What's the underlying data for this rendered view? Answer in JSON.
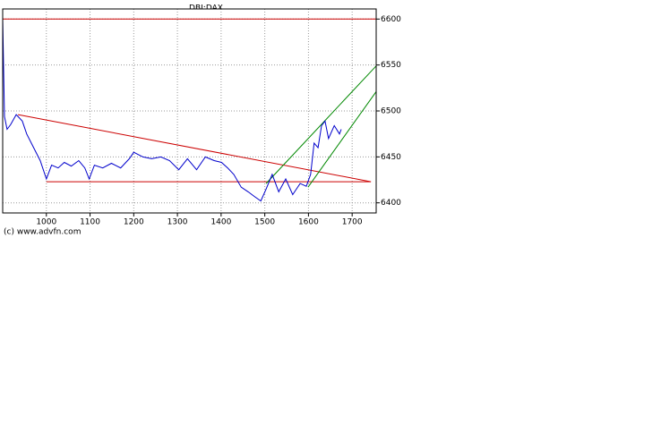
{
  "chart_data": {
    "type": "line",
    "title": "DBI:DAX",
    "credit": "(c) www.advfn.com",
    "xlim": [
      900,
      1755
    ],
    "ylim": [
      6389,
      6611
    ],
    "xticks": [
      1000,
      1100,
      1200,
      1300,
      1400,
      1500,
      1600,
      1700
    ],
    "yticks": [
      6400,
      6450,
      6500,
      6550,
      6600
    ],
    "grid": true,
    "series": [
      {
        "color": "#0000cc",
        "x": [
          900,
          904,
          910,
          918,
          931,
          945,
          955,
          971,
          986,
          1000,
          1012,
          1027,
          1041,
          1057,
          1074,
          1088,
          1098,
          1110,
          1129,
          1149,
          1170,
          1190,
          1200,
          1221,
          1241,
          1262,
          1282,
          1303,
          1323,
          1344,
          1364,
          1384,
          1401,
          1415,
          1429,
          1446,
          1462,
          1476,
          1491,
          1503,
          1517,
          1532,
          1548,
          1564,
          1581,
          1595,
          1605,
          1613,
          1622,
          1630,
          1638,
          1646,
          1659,
          1671,
          1675
        ],
        "values": [
          6601,
          6494,
          6480,
          6485,
          6496,
          6489,
          6475,
          6460,
          6446,
          6426,
          6441,
          6438,
          6444,
          6440,
          6446,
          6438,
          6426,
          6441,
          6438,
          6443,
          6438,
          6448,
          6455,
          6450,
          6448,
          6450,
          6446,
          6436,
          6448,
          6436,
          6450,
          6446,
          6444,
          6438,
          6431,
          6417,
          6412,
          6407,
          6402,
          6415,
          6431,
          6412,
          6426,
          6409,
          6421,
          6418,
          6431,
          6465,
          6460,
          6484,
          6489,
          6470,
          6484,
          6475,
          6480
        ]
      }
    ],
    "trendlines": [
      {
        "color": "#cc0000",
        "x": [
          900,
          1755
        ],
        "values": [
          6600,
          6600
        ]
      },
      {
        "color": "#cc0000",
        "x": [
          935,
          1743
        ],
        "values": [
          6496,
          6423
        ]
      },
      {
        "color": "#cc0000",
        "x": [
          1000,
          1743
        ],
        "values": [
          6423,
          6423
        ]
      },
      {
        "color": "#008800",
        "x": [
          1503,
          1755
        ],
        "values": [
          6421,
          6549
        ]
      },
      {
        "color": "#008800",
        "x": [
          1599,
          1755
        ],
        "values": [
          6417,
          6521
        ]
      }
    ]
  }
}
